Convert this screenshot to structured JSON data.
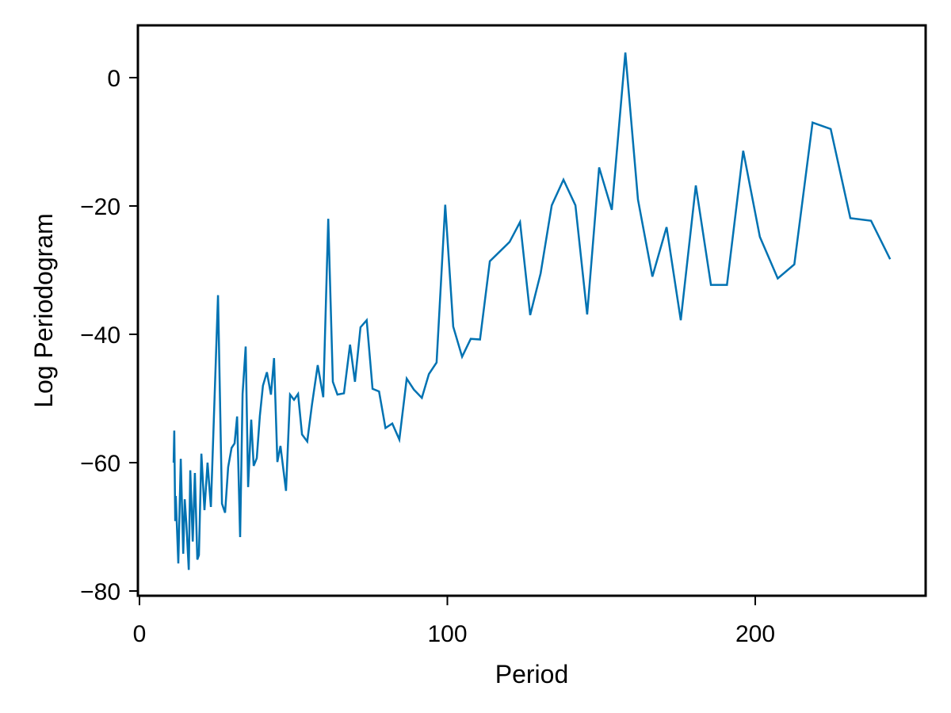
{
  "chart_data": {
    "type": "line",
    "title": "",
    "xlabel": "Period",
    "ylabel": "Log Periodogram",
    "xlim": [
      0,
      256
    ],
    "ylim": [
      -81,
      8
    ],
    "xticks": [
      0,
      100,
      200
    ],
    "xtick_labels": [
      "0",
      "100",
      "200"
    ],
    "yticks": [
      0,
      -20,
      -40,
      -60,
      -80
    ],
    "ytick_labels": [
      "0",
      "−20",
      "−40",
      "−60",
      "−80"
    ],
    "grid": false,
    "legend": null,
    "series": [
      {
        "name": "Log Periodogram",
        "color": "#0072B2",
        "x": [
          11.1,
          11.3,
          11.6,
          11.8,
          12.6,
          13.4,
          14.2,
          14.7,
          15.2,
          16.0,
          16.5,
          17.3,
          18.0,
          18.8,
          19.3,
          20.1,
          21.1,
          22.1,
          23.2,
          25.5,
          26.8,
          27.8,
          28.8,
          29.9,
          30.9,
          31.7,
          32.7,
          33.5,
          34.5,
          35.3,
          36.3,
          37.1,
          38.1,
          39.1,
          40.1,
          41.4,
          42.7,
          43.7,
          44.8,
          45.8,
          47.6,
          48.9,
          50.2,
          51.5,
          52.8,
          54.5,
          56.0,
          57.9,
          59.7,
          61.3,
          62.8,
          64.3,
          66.4,
          68.4,
          70.0,
          71.8,
          73.8,
          75.7,
          77.8,
          79.9,
          82.1,
          84.4,
          86.8,
          89.1,
          91.7,
          94.0,
          96.5,
          99.3,
          101.9,
          104.8,
          107.6,
          110.6,
          113.8,
          116.8,
          120.2,
          123.6,
          126.9,
          130.3,
          133.9,
          137.7,
          141.6,
          145.4,
          149.3,
          153.4,
          157.8,
          161.9,
          166.6,
          171.2,
          175.8,
          180.7,
          185.6,
          190.8,
          196.1,
          201.5,
          207.3,
          212.7,
          218.6,
          224.5,
          230.9,
          237.6,
          243.8
        ],
        "values": [
          -60.0,
          -55.0,
          -69.1,
          -65.2,
          -75.7,
          -59.4,
          -74.2,
          -65.7,
          -69.4,
          -76.7,
          -61.2,
          -72.3,
          -61.6,
          -75.1,
          -74.4,
          -58.6,
          -67.4,
          -60.0,
          -66.9,
          -33.9,
          -66.4,
          -67.8,
          -60.7,
          -57.7,
          -57.0,
          -52.8,
          -71.6,
          -49.3,
          -41.9,
          -63.8,
          -53.3,
          -60.5,
          -59.3,
          -52.7,
          -48.0,
          -45.9,
          -49.4,
          -43.7,
          -59.9,
          -57.4,
          -64.4,
          -49.4,
          -50.2,
          -49.3,
          -55.6,
          -56.7,
          -51.0,
          -44.8,
          -49.8,
          -22.0,
          -47.4,
          -49.4,
          -49.2,
          -41.6,
          -47.4,
          -38.9,
          -37.8,
          -48.5,
          -48.9,
          -54.6,
          -53.9,
          -56.4,
          -46.9,
          -48.6,
          -49.9,
          -46.2,
          -44.4,
          -19.8,
          -38.8,
          -43.5,
          -40.7,
          -40.8,
          -28.6,
          -27.2,
          -25.6,
          -22.5,
          -37.0,
          -30.5,
          -19.9,
          -15.9,
          -19.9,
          -36.9,
          -14.0,
          -20.6,
          3.9,
          -19.0,
          -31.0,
          -23.3,
          -37.8,
          -16.8,
          -32.3,
          -32.3,
          -11.4,
          -24.8,
          -31.3,
          -29.1,
          -7.0,
          -8.0,
          -21.9,
          -22.3,
          -28.3
        ]
      }
    ]
  },
  "plot": {
    "frame_color": "#000000",
    "background": "#ffffff"
  }
}
